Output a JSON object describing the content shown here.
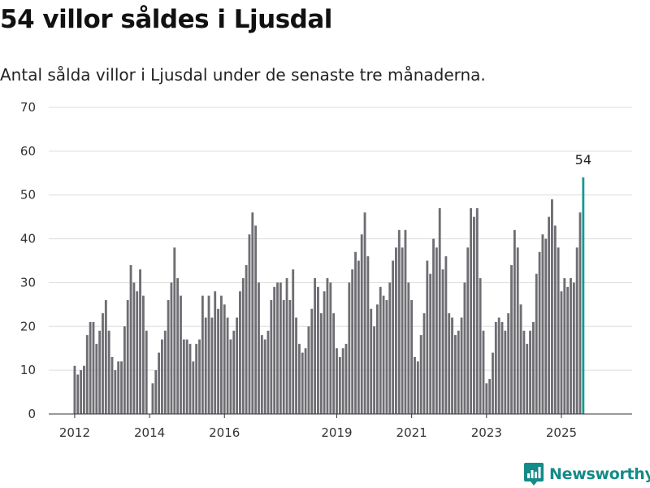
{
  "title": "54 villor såldes i Ljusdal",
  "subtitle": "Antal sålda villor i Ljusdal under de senaste tre månaderna.",
  "colors": {
    "bar": "#6e6d72",
    "highlight": "#159a96",
    "grid": "#dddddd",
    "brand": "#138b88"
  },
  "logo": {
    "text": "Newsworthy",
    "icon": "newsworthy-chart-icon"
  },
  "chart_data": {
    "type": "bar",
    "title": "",
    "xlabel": "",
    "ylabel": "",
    "ylim": [
      0,
      70
    ],
    "yticks": [
      0,
      10,
      20,
      30,
      40,
      50,
      60,
      70
    ],
    "grid": true,
    "xticks": [
      "2012",
      "2014",
      "2016",
      "2019",
      "2021",
      "2023",
      "2025"
    ],
    "first_period": "2012-01",
    "period": "month",
    "values": [
      11,
      9,
      10,
      11,
      18,
      21,
      21,
      16,
      19,
      23,
      26,
      19,
      13,
      10,
      12,
      12,
      20,
      26,
      34,
      30,
      28,
      33,
      27,
      19,
      null,
      7,
      10,
      14,
      17,
      19,
      26,
      30,
      38,
      31,
      27,
      17,
      17,
      16,
      12,
      16,
      17,
      27,
      22,
      27,
      22,
      28,
      24,
      27,
      25,
      22,
      17,
      19,
      22,
      28,
      31,
      34,
      41,
      46,
      43,
      30,
      18,
      17,
      19,
      26,
      29,
      30,
      30,
      26,
      31,
      26,
      33,
      22,
      16,
      14,
      15,
      20,
      24,
      31,
      29,
      23,
      28,
      31,
      30,
      23,
      15,
      13,
      15,
      16,
      30,
      33,
      37,
      35,
      41,
      46,
      36,
      24,
      20,
      25,
      29,
      27,
      26,
      30,
      35,
      38,
      42,
      38,
      42,
      30,
      26,
      13,
      12,
      18,
      23,
      35,
      32,
      40,
      38,
      47,
      33,
      36,
      23,
      22,
      18,
      19,
      22,
      30,
      38,
      47,
      45,
      47,
      31,
      19,
      7,
      8,
      14,
      21,
      22,
      21,
      19,
      23,
      34,
      42,
      38,
      25,
      19,
      16,
      19,
      21,
      32,
      37,
      41,
      40,
      45,
      49,
      43,
      38,
      28,
      31,
      29,
      31,
      30,
      38,
      46,
      54
    ],
    "highlight_last": true,
    "annotation": "54"
  }
}
